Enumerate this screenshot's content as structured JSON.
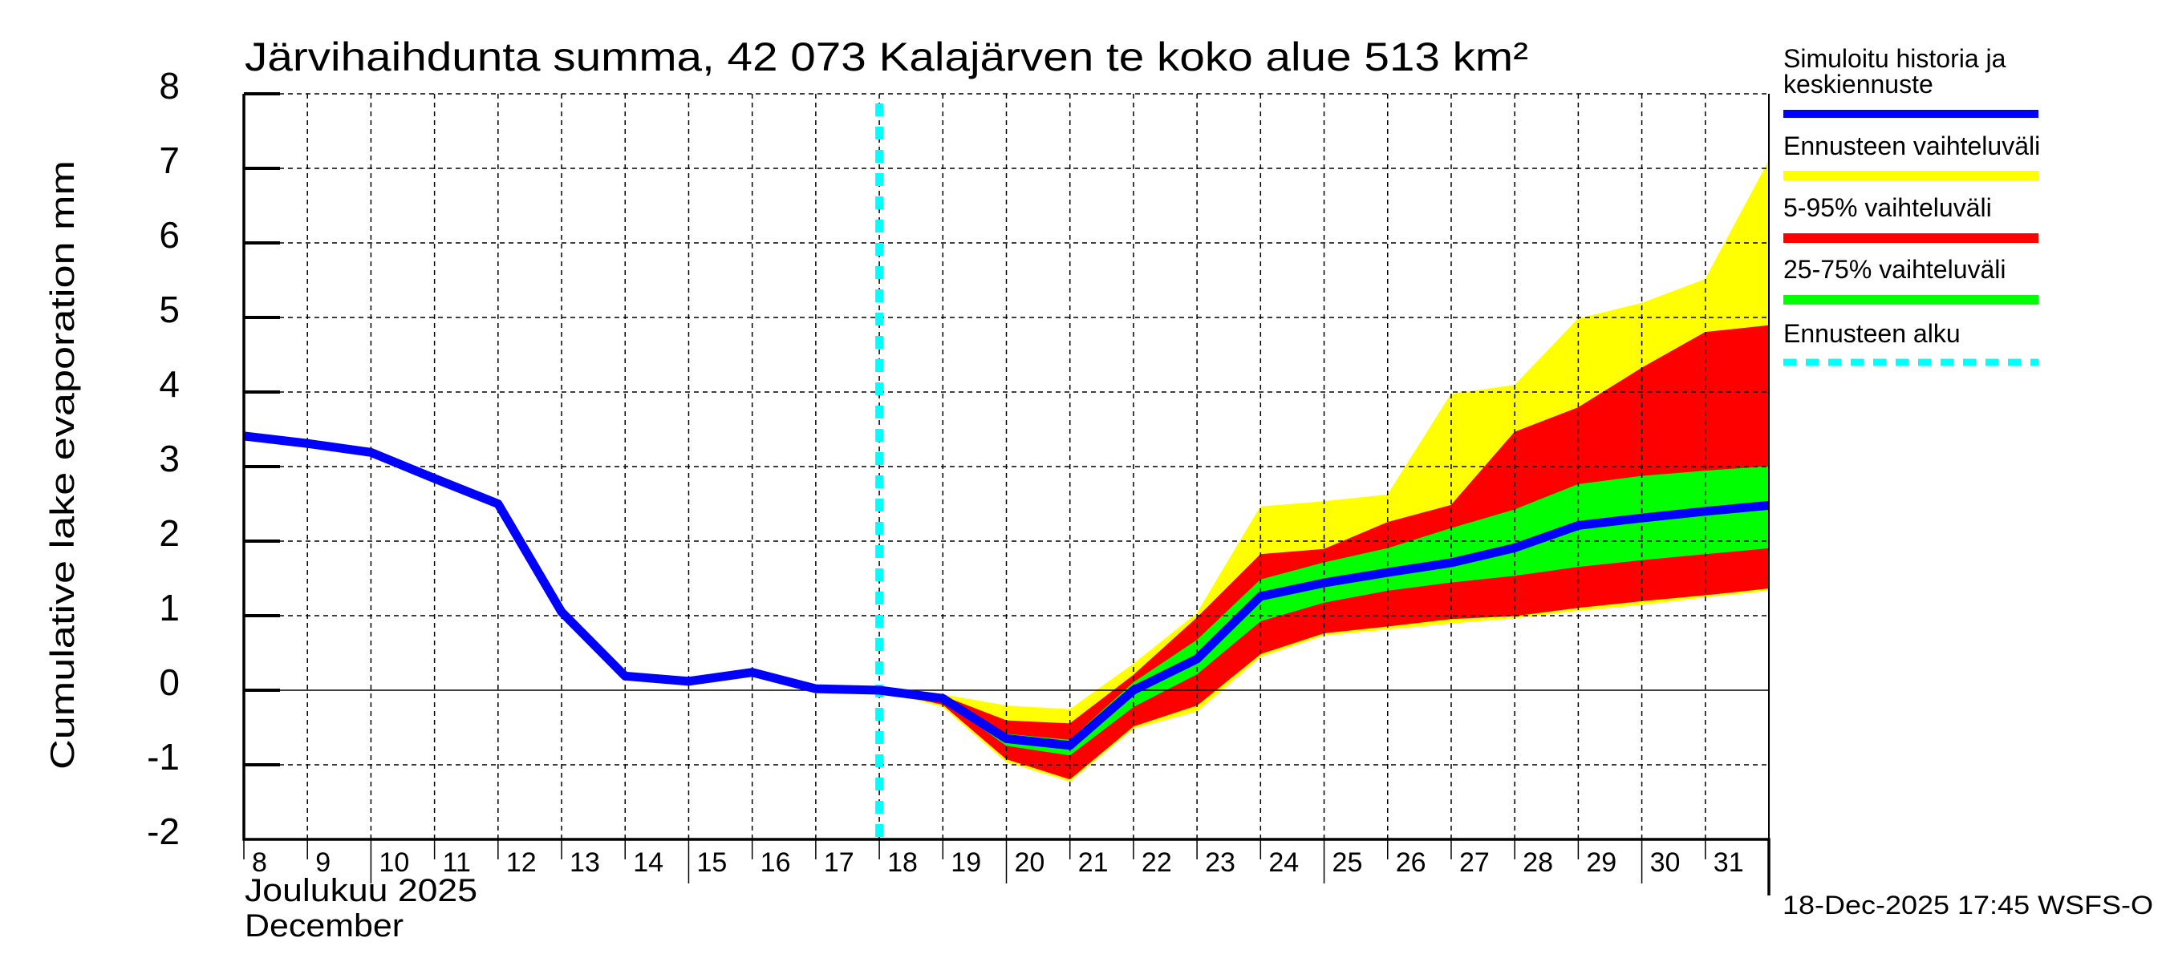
{
  "chart_data": {
    "type": "area",
    "title": "Järvihaihdunta summa, 42 073 Kalajärven te koko alue 513 km²",
    "ylabel": "Cumulative lake evaporation   mm",
    "xlabel_line1": "Joulukuu  2025",
    "xlabel_line2": "December",
    "ylim": [
      -2,
      8
    ],
    "xlim": [
      8,
      32
    ],
    "yticks": [
      -2,
      -1,
      0,
      1,
      2,
      3,
      4,
      5,
      6,
      7,
      8
    ],
    "xticks": [
      8,
      9,
      10,
      11,
      12,
      13,
      14,
      15,
      16,
      17,
      18,
      19,
      20,
      21,
      22,
      23,
      24,
      25,
      26,
      27,
      28,
      29,
      30,
      31
    ],
    "grid": true,
    "legend_position": "right",
    "forecast_start_day": 18,
    "history": {
      "name": "Simuloitu historia ja keskiennuste",
      "x": [
        8,
        9,
        10,
        11,
        12,
        13,
        14,
        15,
        16,
        17,
        18
      ],
      "y": [
        3.41,
        3.31,
        3.19,
        2.84,
        2.5,
        1.05,
        0.19,
        0.12,
        0.24,
        0.02,
        0.0
      ]
    },
    "forecast_x": [
      18,
      19,
      20,
      21,
      22,
      23,
      24,
      25,
      26,
      27,
      28,
      29,
      30,
      31,
      32
    ],
    "median": [
      0.0,
      -0.11,
      -0.65,
      -0.74,
      0.0,
      0.42,
      1.26,
      1.44,
      1.58,
      1.71,
      1.91,
      2.21,
      2.31,
      2.4,
      2.48
    ],
    "range_min": [
      0.0,
      -0.22,
      -0.96,
      -1.22,
      -0.51,
      -0.28,
      0.45,
      0.74,
      0.82,
      0.9,
      0.97,
      1.07,
      1.15,
      1.25,
      1.34
    ],
    "range_max": [
      0.0,
      -0.06,
      -0.21,
      -0.26,
      0.35,
      1.03,
      2.46,
      2.53,
      2.62,
      3.97,
      4.09,
      4.98,
      5.19,
      5.51,
      7.1
    ],
    "p05": [
      0.0,
      -0.19,
      -0.92,
      -1.19,
      -0.48,
      -0.2,
      0.49,
      0.77,
      0.86,
      0.96,
      1.0,
      1.11,
      1.2,
      1.28,
      1.37
    ],
    "p95": [
      0.0,
      -0.08,
      -0.41,
      -0.45,
      0.2,
      0.97,
      1.82,
      1.89,
      2.25,
      2.48,
      3.46,
      3.79,
      4.32,
      4.8,
      4.89
    ],
    "p25": [
      0.0,
      -0.13,
      -0.74,
      -0.87,
      -0.22,
      0.22,
      0.93,
      1.18,
      1.34,
      1.45,
      1.54,
      1.66,
      1.75,
      1.83,
      1.91
    ],
    "p75": [
      0.0,
      -0.1,
      -0.59,
      -0.67,
      0.1,
      0.67,
      1.48,
      1.71,
      1.9,
      2.17,
      2.42,
      2.76,
      2.87,
      2.94,
      3.0
    ],
    "legend": [
      {
        "key": "history",
        "label": "Simuloitu historia ja keskiennuste",
        "line1": "Simuloitu historia ja",
        "line2": "keskiennuste",
        "color": "#0000ff",
        "style": "solid"
      },
      {
        "key": "range",
        "label": "Ennusteen vaihteluväli",
        "color": "#ffff00",
        "style": "solid"
      },
      {
        "key": "p5_95",
        "label": "5-95% vaihteluväli",
        "color": "#ff0000",
        "style": "solid"
      },
      {
        "key": "p25_75",
        "label": "25-75% vaihteluväli",
        "color": "#00ff00",
        "style": "solid"
      },
      {
        "key": "forecast_start",
        "label": "Ennusteen alku",
        "color": "#00ffff",
        "style": "dashed"
      }
    ]
  },
  "footer": {
    "timestamp": "18-Dec-2025 17:45 WSFS-O"
  }
}
